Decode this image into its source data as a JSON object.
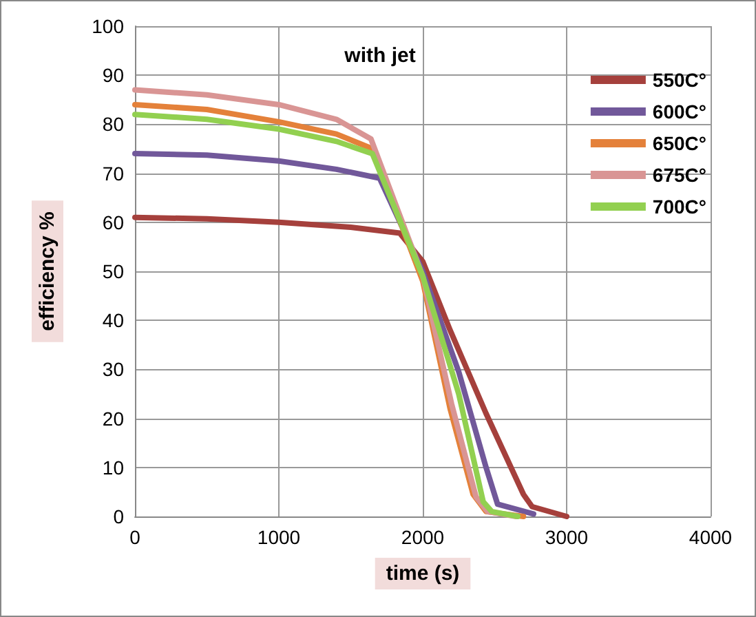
{
  "chart_data": {
    "type": "line",
    "title": "with jet",
    "xlabel": "time (s)",
    "ylabel": "efficiency %",
    "xlim": [
      0,
      4000
    ],
    "xticks": [
      0,
      1000,
      2000,
      3000,
      4000
    ],
    "ylim": [
      0,
      100
    ],
    "yticks": [
      0,
      10,
      20,
      30,
      40,
      50,
      60,
      70,
      80,
      90,
      100
    ],
    "grid": true,
    "legend": "top right",
    "marker": "none",
    "line_style": "solid",
    "series": [
      {
        "name": "550C°",
        "color": "#a5403c",
        "x": [
          0,
          500,
          1000,
          1500,
          1840,
          2000,
          2190,
          2440,
          2700,
          2760,
          3000
        ],
        "values": [
          61,
          60.7,
          60,
          59,
          57.8,
          52,
          38,
          21,
          4.5,
          2,
          0
        ]
      },
      {
        "name": "600C°",
        "color": "#71589a",
        "x": [
          0,
          500,
          1000,
          1400,
          1700,
          2000,
          2250,
          2440,
          2520,
          2770
        ],
        "values": [
          74,
          73.7,
          72.5,
          70.8,
          69,
          50,
          29.5,
          10,
          2.5,
          0.5
        ]
      },
      {
        "name": "650C°",
        "color": "#e4813a",
        "x": [
          0,
          500,
          1000,
          1400,
          1650,
          2000,
          2190,
          2350,
          2440,
          2700
        ],
        "values": [
          84,
          83,
          80.5,
          78,
          75,
          48,
          22,
          4.5,
          1,
          0
        ]
      },
      {
        "name": "675C°",
        "color": "#d99594",
        "x": [
          0,
          500,
          1000,
          1400,
          1640,
          2000,
          2200,
          2370,
          2450,
          2650
        ],
        "values": [
          87,
          86,
          84,
          81,
          77,
          49,
          23,
          4,
          1,
          0
        ]
      },
      {
        "name": "700C°",
        "color": "#92d050",
        "x": [
          0,
          500,
          1000,
          1400,
          1650,
          2000,
          2250,
          2420,
          2480,
          2660
        ],
        "values": [
          82,
          81,
          79,
          76.5,
          74,
          49,
          25,
          3,
          1,
          0
        ]
      }
    ]
  }
}
